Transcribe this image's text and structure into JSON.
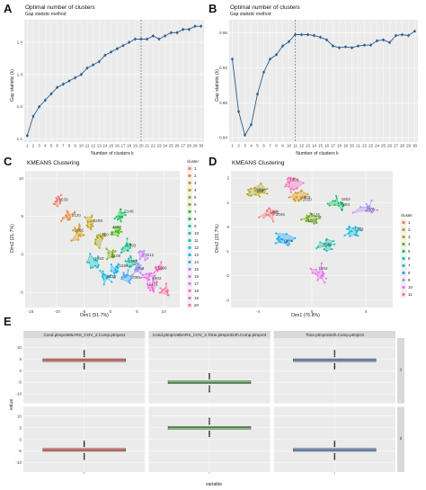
{
  "panels": {
    "A": {
      "label": "A",
      "title": "Optimal number of clusters",
      "subtitle": "Gap statistic method",
      "xlabel": "Number of clusters k",
      "ylabel": "Gap statistic (k)"
    },
    "B": {
      "label": "B",
      "title": "Optimal number of clusters",
      "subtitle": "Gap statistic method",
      "xlabel": "Number of clusters k",
      "ylabel": "Gap statistic (k)"
    },
    "C": {
      "label": "C",
      "title": "KMEANS Clustering",
      "xlabel": "Dim1 (51.7%)",
      "ylabel": "Dim2 (21.7%)",
      "legend_title": "cluster"
    },
    "D": {
      "label": "D",
      "title": "KMEANS Clustering",
      "xlabel": "Dim1 (76.8%)",
      "ylabel": "Dim2 (15.7%)",
      "legend_title": "cluster"
    },
    "E": {
      "label": "E",
      "xlabel": "variable",
      "ylabel": "value"
    }
  },
  "colors": {
    "line": "#2b5e8c",
    "point": "#2b5e8c",
    "ref_line": "#555555",
    "panel_bg": "#ebebeb",
    "grid": "#ffffff",
    "strip_bg": "#d9d9d9",
    "box_red": "#f08a82",
    "box_green": "#7fc97f",
    "box_blue": "#8aa6d6"
  },
  "chart_data": [
    {
      "id": "A",
      "type": "line",
      "title": "Optimal number of clusters",
      "subtitle": "Gap statistic method",
      "xlabel": "Number of clusters k",
      "ylabel": "Gap statistic (k)",
      "x": [
        1,
        2,
        3,
        4,
        5,
        6,
        7,
        8,
        9,
        10,
        11,
        12,
        13,
        14,
        15,
        16,
        17,
        18,
        19,
        20,
        21,
        22,
        23,
        24,
        25,
        26,
        27,
        28,
        29,
        30
      ],
      "y": [
        1.11,
        1.17,
        1.2,
        1.22,
        1.24,
        1.26,
        1.27,
        1.28,
        1.29,
        1.3,
        1.32,
        1.33,
        1.34,
        1.36,
        1.37,
        1.38,
        1.39,
        1.4,
        1.41,
        1.41,
        1.41,
        1.42,
        1.41,
        1.42,
        1.43,
        1.43,
        1.44,
        1.44,
        1.45,
        1.45
      ],
      "xticks": [
        "1",
        "2",
        "3",
        "4",
        "5",
        "6",
        "7",
        "8",
        "9",
        "10",
        "11",
        "12",
        "13",
        "14",
        "15",
        "16",
        "17",
        "18",
        "19",
        "20",
        "21",
        "22",
        "23",
        "24",
        "25",
        "26",
        "27",
        "28",
        "29",
        "30"
      ],
      "yticks": [
        1.1,
        1.2,
        1.3,
        1.4
      ],
      "ylim": [
        1.09,
        1.47
      ],
      "vline_x": 20
    },
    {
      "id": "B",
      "type": "line",
      "title": "Optimal number of clusters",
      "subtitle": "Gap statistic method",
      "xlabel": "Number of clusters k",
      "ylabel": "Gap statistic (k)",
      "x": [
        1,
        2,
        3,
        4,
        5,
        6,
        7,
        8,
        9,
        10,
        11,
        12,
        13,
        14,
        15,
        16,
        17,
        18,
        19,
        20,
        21,
        22,
        23,
        24,
        25,
        26,
        27,
        28,
        29,
        30
      ],
      "y": [
        0.93,
        0.87,
        0.843,
        0.855,
        0.89,
        0.915,
        0.93,
        0.935,
        0.945,
        0.95,
        0.958,
        0.958,
        0.958,
        0.957,
        0.955,
        0.952,
        0.945,
        0.943,
        0.944,
        0.943,
        0.945,
        0.946,
        0.946,
        0.951,
        0.952,
        0.949,
        0.957,
        0.958,
        0.957,
        0.962
      ],
      "xticks": [
        "1",
        "2",
        "3",
        "4",
        "5",
        "6",
        "7",
        "8",
        "9",
        "10",
        "11",
        "12",
        "13",
        "14",
        "15",
        "16",
        "17",
        "18",
        "19",
        "20",
        "21",
        "22",
        "23",
        "24",
        "25",
        "26",
        "27",
        "28",
        "29",
        "30"
      ],
      "yticks": [
        0.84,
        0.88,
        0.92,
        0.96
      ],
      "ylim": [
        0.835,
        0.975
      ],
      "vline_x": 11
    },
    {
      "id": "C",
      "type": "scatter",
      "title": "KMEANS Clustering",
      "xlabel": "Dim1 (51.7%)",
      "ylabel": "Dim2 (21.7%)",
      "xticks": [
        -15,
        -10,
        -5,
        0,
        5,
        10
      ],
      "yticks": [
        -5,
        0,
        5,
        10
      ],
      "xlim": [
        -16,
        13
      ],
      "ylim": [
        -7,
        11
      ],
      "legend": [
        "1",
        "2",
        "3",
        "4",
        "5",
        "6",
        "7",
        "8",
        "9",
        "10",
        "11",
        "12",
        "13",
        "14",
        "15",
        "16",
        "17",
        "18",
        "19",
        "20"
      ]
    },
    {
      "id": "D",
      "type": "scatter",
      "title": "KMEANS Clustering",
      "xlabel": "Dim1 (76.8%)",
      "ylabel": "Dim2 (15.7%)",
      "xticks": [
        -4,
        0,
        4
      ],
      "yticks": [
        -3,
        -2,
        -1,
        0,
        1,
        2
      ],
      "xlim": [
        -6,
        6
      ],
      "ylim": [
        -3.3,
        2.3
      ],
      "legend": [
        "1",
        "2",
        "3",
        "4",
        "5",
        "6",
        "7",
        "8",
        "9",
        "10",
        "11"
      ]
    },
    {
      "id": "E",
      "type": "box",
      "xlabel": "variable",
      "ylabel": "value",
      "facets": [
        "Cond.ptmprot65ARS_COV_2.Comp.ptmprot",
        "Cond.ptmprot65ARS_COV_2.Time.ptmprot24h.Comp.ptmprot",
        "Time.ptmprot24h.Comp.ptmprot"
      ],
      "rows": [
        "1",
        "2"
      ],
      "yticks": [
        -10,
        -5,
        0,
        5,
        10
      ],
      "ylim": [
        -14,
        14
      ],
      "boxes": [
        {
          "row": "1",
          "facet": 0,
          "median": 4.5
        },
        {
          "row": "1",
          "facet": 1,
          "median": -5.0
        },
        {
          "row": "1",
          "facet": 2,
          "median": 4.5
        },
        {
          "row": "2",
          "facet": 0,
          "median": -4.5
        },
        {
          "row": "2",
          "facet": 1,
          "median": 5.0
        },
        {
          "row": "2",
          "facet": 2,
          "median": -4.5
        }
      ]
    }
  ],
  "scatter_labels": {
    "C": [
      "1539",
      "2120",
      "1602",
      "2269",
      "1650",
      "2109",
      "1652",
      "2148",
      "1093",
      "1183",
      "1683",
      "2138",
      "1584",
      "2098",
      "1003",
      "1512",
      "1902",
      "2171",
      "1066"
    ],
    "D": [
      "2046",
      "2010",
      "1095",
      "5135",
      "1802",
      "1502",
      "1303",
      "1804",
      "1205",
      "1502",
      "1003",
      "1603",
      "1403",
      "1002",
      "1003",
      "883"
    ]
  }
}
